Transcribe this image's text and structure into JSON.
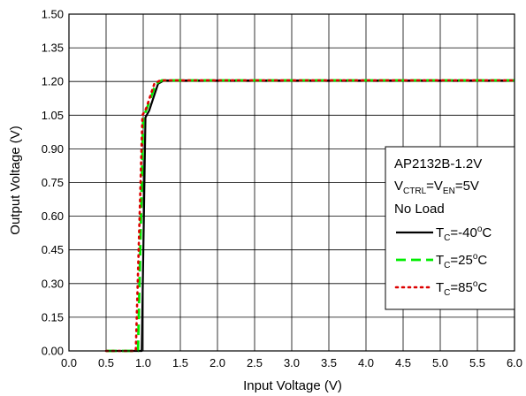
{
  "chart_data": {
    "type": "line",
    "xlabel": "Input Voltage (V)",
    "ylabel": "Output Voltage (V)",
    "xlim": [
      0,
      6
    ],
    "ylim": [
      0,
      1.5
    ],
    "grid": true,
    "x_ticks": [
      "0.0",
      "0.5",
      "1.0",
      "1.5",
      "2.0",
      "2.5",
      "3.0",
      "3.5",
      "4.0",
      "4.5",
      "5.0",
      "5.5",
      "6.0"
    ],
    "y_ticks": [
      "0.00",
      "0.15",
      "0.30",
      "0.45",
      "0.60",
      "0.75",
      "0.90",
      "1.05",
      "1.20",
      "1.35",
      "1.50"
    ],
    "annotation": {
      "line1": "AP2132B-1.2V",
      "line2_main_a": "V",
      "line2_sub_a": "CTRL",
      "line2_main_b": "=V",
      "line2_sub_b": "EN",
      "line2_main_c": "=5V",
      "line3": "No Load"
    },
    "legend_placement": "right",
    "series": [
      {
        "name_prefix": "T",
        "name_sub": "C",
        "name_suffix_a": "=-40",
        "name_sup": "o",
        "name_suffix_b": "C",
        "color": "#000000",
        "style": "solid",
        "points": [
          [
            0.5,
            0
          ],
          [
            0.98,
            0
          ],
          [
            1.03,
            1.04
          ],
          [
            1.08,
            1.07
          ],
          [
            1.2,
            1.19
          ],
          [
            1.28,
            1.205
          ],
          [
            6.0,
            1.205
          ]
        ]
      },
      {
        "name_prefix": "T",
        "name_sub": "C",
        "name_suffix_a": "=25",
        "name_sup": "o",
        "name_suffix_b": "C",
        "color": "#00ee00",
        "style": "dashed",
        "points": [
          [
            0.5,
            0
          ],
          [
            0.93,
            0
          ],
          [
            1.0,
            1.04
          ],
          [
            1.05,
            1.08
          ],
          [
            1.17,
            1.19
          ],
          [
            1.25,
            1.205
          ],
          [
            6.0,
            1.205
          ]
        ]
      },
      {
        "name_prefix": "T",
        "name_sub": "C",
        "name_suffix_a": "=85",
        "name_sup": "o",
        "name_suffix_b": "C",
        "color": "#dd0000",
        "style": "dotted",
        "points": [
          [
            0.5,
            0
          ],
          [
            0.9,
            0
          ],
          [
            0.99,
            1.05
          ],
          [
            1.04,
            1.08
          ],
          [
            1.15,
            1.19
          ],
          [
            1.23,
            1.205
          ],
          [
            6.0,
            1.205
          ]
        ]
      }
    ]
  }
}
